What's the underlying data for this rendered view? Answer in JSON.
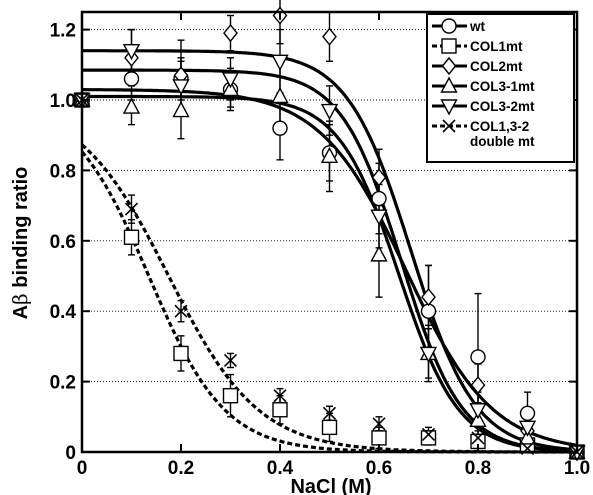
{
  "chart_data": {
    "type": "scatter",
    "title": "",
    "xlabel": "NaCl (M)",
    "ylabel_prefix": "A",
    "ylabel_greek": "β",
    "ylabel_suffix": " binding ratio",
    "xlim": [
      0,
      1.0
    ],
    "ylim": [
      0,
      1.25
    ],
    "xticks": [
      0,
      0.2,
      0.4,
      0.6,
      0.8,
      1.0
    ],
    "xtick_labels": [
      "0",
      "0.2",
      "0.4",
      "0.6",
      "0.8",
      "1.0"
    ],
    "yticks": [
      0,
      0.2,
      0.4,
      0.6,
      0.8,
      1.0,
      1.2
    ],
    "ytick_labels": [
      "0",
      "0.2",
      "0.4",
      "0.6",
      "0.8",
      "1.0",
      "1.2"
    ],
    "grid": "horizontal dotted",
    "legend_position": "top-right",
    "series": [
      {
        "name": "wt",
        "marker": "circle",
        "line": "solid",
        "x": [
          0,
          0.1,
          0.2,
          0.3,
          0.4,
          0.5,
          0.6,
          0.7,
          0.8,
          0.9,
          1.0
        ],
        "y": [
          1.0,
          1.06,
          1.06,
          1.03,
          0.92,
          0.85,
          0.72,
          0.4,
          0.27,
          0.11,
          0.0
        ],
        "err": [
          0,
          0.06,
          0.06,
          0.05,
          0.09,
          0.08,
          0.1,
          0.13,
          0.18,
          0.06,
          0
        ],
        "fit": {
          "top": 1.03,
          "bottom": 0.0,
          "x50": 0.655,
          "slope": 11.5
        }
      },
      {
        "name": "COL1mt",
        "marker": "square",
        "line": "dashed",
        "x": [
          0,
          0.1,
          0.2,
          0.3,
          0.4,
          0.5,
          0.6,
          0.7,
          0.8,
          0.9,
          1.0
        ],
        "y": [
          1.0,
          0.61,
          0.28,
          0.16,
          0.12,
          0.07,
          0.04,
          0.04,
          0.03,
          0.02,
          0.0
        ],
        "err": [
          0,
          0.05,
          0.05,
          0.06,
          0.04,
          0.04,
          0.03,
          0.02,
          0.02,
          0.02,
          0
        ],
        "fit": {
          "top": 1.0,
          "bottom": 0.0,
          "x50": 0.135,
          "slope": 13.0
        }
      },
      {
        "name": "COL2mt",
        "marker": "diamond",
        "line": "solid",
        "x": [
          0,
          0.1,
          0.2,
          0.3,
          0.4,
          0.5,
          0.6,
          0.7,
          0.8,
          0.9,
          1.0
        ],
        "y": [
          1.0,
          1.12,
          1.07,
          1.19,
          1.24,
          1.18,
          0.78,
          0.44,
          0.19,
          0.06,
          0.0
        ],
        "err": [
          0,
          0.08,
          0.1,
          0.05,
          0.08,
          0.07,
          0.08,
          0.09,
          0.06,
          0.05,
          0
        ],
        "fit": {
          "top": 1.14,
          "bottom": 0.0,
          "x50": 0.665,
          "slope": 15.5
        }
      },
      {
        "name": "COL3-1mt",
        "marker": "triangle-up",
        "line": "solid",
        "x": [
          0,
          0.1,
          0.2,
          0.3,
          0.4,
          0.5,
          0.6,
          0.7,
          0.8,
          0.9,
          1.0
        ],
        "y": [
          1.0,
          0.98,
          0.97,
          1.03,
          1.01,
          0.84,
          0.56,
          0.28,
          0.09,
          0.04,
          0.0
        ],
        "err": [
          0,
          0.05,
          0.08,
          0.06,
          0.1,
          0.1,
          0.12,
          0.08,
          0.05,
          0.02,
          0
        ],
        "fit": {
          "top": 1.01,
          "bottom": 0.0,
          "x50": 0.64,
          "slope": 16.5
        }
      },
      {
        "name": "COL3-2mt",
        "marker": "triangle-down",
        "line": "solid",
        "x": [
          0,
          0.1,
          0.2,
          0.3,
          0.4,
          0.5,
          0.6,
          0.7,
          0.8,
          0.9,
          1.0
        ],
        "y": [
          1.0,
          1.14,
          1.04,
          1.06,
          1.11,
          0.97,
          0.67,
          0.28,
          0.12,
          0.07,
          0.0
        ],
        "err": [
          0,
          0.06,
          0.07,
          0.06,
          0.09,
          0.07,
          0.09,
          0.07,
          0.05,
          0.03,
          0
        ],
        "fit": {
          "top": 1.085,
          "bottom": 0.0,
          "x50": 0.645,
          "slope": 16.5
        }
      },
      {
        "name": "COL1,3-2\ndouble mt",
        "marker": "x",
        "line": "dashed",
        "x": [
          0,
          0.1,
          0.2,
          0.3,
          0.4,
          0.5,
          0.6,
          0.7,
          0.8,
          0.9,
          1.0
        ],
        "y": [
          1.0,
          0.69,
          0.4,
          0.26,
          0.16,
          0.11,
          0.08,
          0.05,
          0.04,
          0.01,
          0.0
        ],
        "err": [
          0,
          0.04,
          0.03,
          0.02,
          0.02,
          0.02,
          0.02,
          0.02,
          0.02,
          0.01,
          0
        ],
        "fit": {
          "top": 1.0,
          "bottom": 0.0,
          "x50": 0.175,
          "slope": 11.0
        }
      }
    ]
  }
}
